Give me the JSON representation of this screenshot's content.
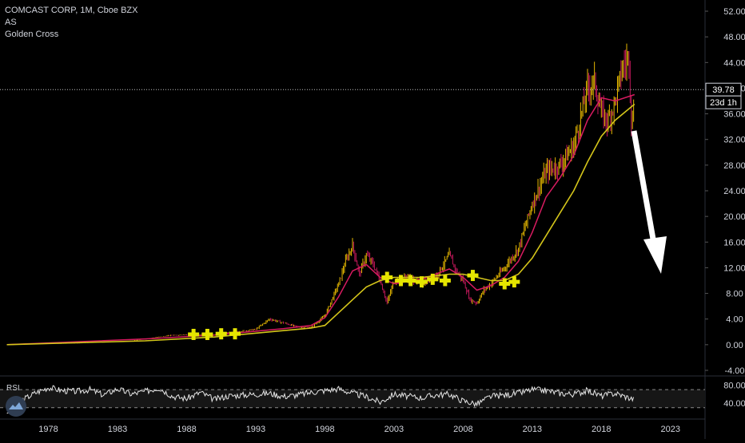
{
  "header": {
    "symbol_line": "COMCAST CORP, 1M, Cboe BZX",
    "indicator_1": "AS",
    "indicator_2": "Golden Cross"
  },
  "price_badge": {
    "value": "39.78",
    "countdown": "23d 1h"
  },
  "rsi_panel": {
    "label": "RSI"
  },
  "colors": {
    "background": "#000000",
    "axis_text": "#d1d4dc",
    "candle_up": "#e6b800",
    "candle_down": "#c2185b",
    "ma_fast": "#d81b60",
    "ma_slow": "#d4c51a",
    "marker": "#e5e500",
    "arrow": "#ffffff"
  },
  "chart_data": {
    "type": "line",
    "title": "COMCAST CORP, 1M, Cboe BZX",
    "x_axis": {
      "tick_labels": [
        "1978",
        "1983",
        "1988",
        "1993",
        "1998",
        "2003",
        "2008",
        "2013",
        "2018",
        "2023"
      ],
      "range": [
        1974.5,
        2025.5
      ]
    },
    "y_axis": {
      "tick_labels": [
        "52.00",
        "48.00",
        "44.00",
        "40.00",
        "36.00",
        "32.00",
        "28.00",
        "24.00",
        "20.00",
        "16.00",
        "12.00",
        "8.00",
        "4.00",
        "0.00",
        "-4.00"
      ],
      "range": [
        -4.5,
        53.0
      ]
    },
    "last_price": 39.78,
    "series": [
      {
        "kind": "price_monthly",
        "x": [
          1975,
          1980,
          1984,
          1987,
          1990,
          1993,
          1994,
          1996,
          1997,
          1998,
          1999,
          1999.5,
          2000,
          2000.5,
          2001,
          2001.5,
          2002,
          2002.5,
          2003,
          2004,
          2005,
          2006,
          2007,
          2007.5,
          2008,
          2008.5,
          2009,
          2009.5,
          2010,
          2011,
          2012,
          2013,
          2014,
          2015,
          2016,
          2017,
          2017.5,
          2018,
          2018.5,
          2019,
          2019.5,
          2020,
          2020.2,
          2020.4
        ],
        "y": [
          0.05,
          0.2,
          0.6,
          1.5,
          1.6,
          2.4,
          4.0,
          2.8,
          2.7,
          4.5,
          9.5,
          13.0,
          15.5,
          11.0,
          14.0,
          12.5,
          10.0,
          6.5,
          10.0,
          10.5,
          9.5,
          10.5,
          14.0,
          11.5,
          10.0,
          7.0,
          6.5,
          8.5,
          9.5,
          12.0,
          15.0,
          22.0,
          27.0,
          28.0,
          31.0,
          40.0,
          41.0,
          36.0,
          35.0,
          38.0,
          43.0,
          45.0,
          33.0,
          39.78
        ]
      },
      {
        "name": "",
        "kind": "moving_average_fast",
        "x": [
          1975,
          1985,
          1990,
          1995,
          1997,
          1998,
          1999,
          2000,
          2001,
          2002,
          2003,
          2005,
          2007,
          2008,
          2009,
          2010,
          2011,
          2012,
          2013,
          2014,
          2015,
          2016,
          2017,
          2018,
          2019,
          2020.4
        ],
        "y": [
          0.0,
          0.9,
          1.5,
          2.5,
          3.0,
          4.2,
          7.5,
          11.5,
          12.5,
          10.5,
          9.5,
          10.2,
          11.8,
          10.5,
          8.5,
          9.2,
          10.5,
          13.0,
          17.5,
          23.0,
          26.0,
          29.5,
          35.0,
          38.5,
          38.0,
          39.0
        ]
      },
      {
        "name": "",
        "kind": "moving_average_slow",
        "x": [
          1975,
          1985,
          1990,
          1995,
          1997,
          1998,
          1999,
          2000,
          2001,
          2002,
          2003,
          2005,
          2007,
          2008,
          2009,
          2010,
          2011,
          2012,
          2013,
          2014,
          2015,
          2016,
          2017,
          2018,
          2019,
          2020.4
        ],
        "y": [
          0.0,
          0.6,
          1.2,
          2.2,
          2.6,
          3.0,
          5.0,
          7.0,
          9.0,
          10.0,
          10.5,
          10.5,
          11.0,
          11.0,
          10.5,
          10.0,
          10.0,
          11.0,
          13.5,
          17.0,
          20.5,
          24.0,
          28.5,
          32.5,
          35.0,
          37.5
        ]
      },
      {
        "name": "Golden Cross",
        "kind": "markers",
        "x": [
          1988.5,
          1989.5,
          1990.5,
          1991.5,
          2002.5,
          2003.5,
          2004.2,
          2005,
          2005.8,
          2006.7,
          2008.7,
          2011.0,
          2011.7
        ],
        "y": [
          1.6,
          1.6,
          1.7,
          1.7,
          10.5,
          10.0,
          10.0,
          9.8,
          10.2,
          10.0,
          10.8,
          9.5,
          9.8
        ]
      }
    ],
    "rsi": {
      "y_axis": {
        "tick_labels": [
          "80.00",
          "40.00"
        ],
        "range": [
          10,
          95
        ]
      },
      "levels": [
        70,
        30
      ],
      "x": [
        1975,
        1976,
        1977,
        1978,
        1979,
        1980,
        1981,
        1982,
        1983,
        1984,
        1985,
        1986,
        1987,
        1988,
        1989,
        1990,
        1991,
        1992,
        1993,
        1994,
        1995,
        1996,
        1997,
        1998,
        1999,
        2000,
        2001,
        2002,
        2003,
        2004,
        2005,
        2006,
        2007,
        2008,
        2009,
        2010,
        2011,
        2012,
        2013,
        2014,
        2015,
        2016,
        2017,
        2018,
        2019,
        2020.4
      ],
      "y": [
        20,
        45,
        62,
        75,
        68,
        66,
        70,
        58,
        72,
        60,
        66,
        74,
        55,
        50,
        64,
        48,
        56,
        58,
        60,
        62,
        55,
        58,
        64,
        68,
        72,
        62,
        54,
        42,
        60,
        55,
        52,
        58,
        60,
        45,
        38,
        55,
        58,
        62,
        70,
        68,
        62,
        60,
        68,
        56,
        62,
        48
      ]
    }
  }
}
